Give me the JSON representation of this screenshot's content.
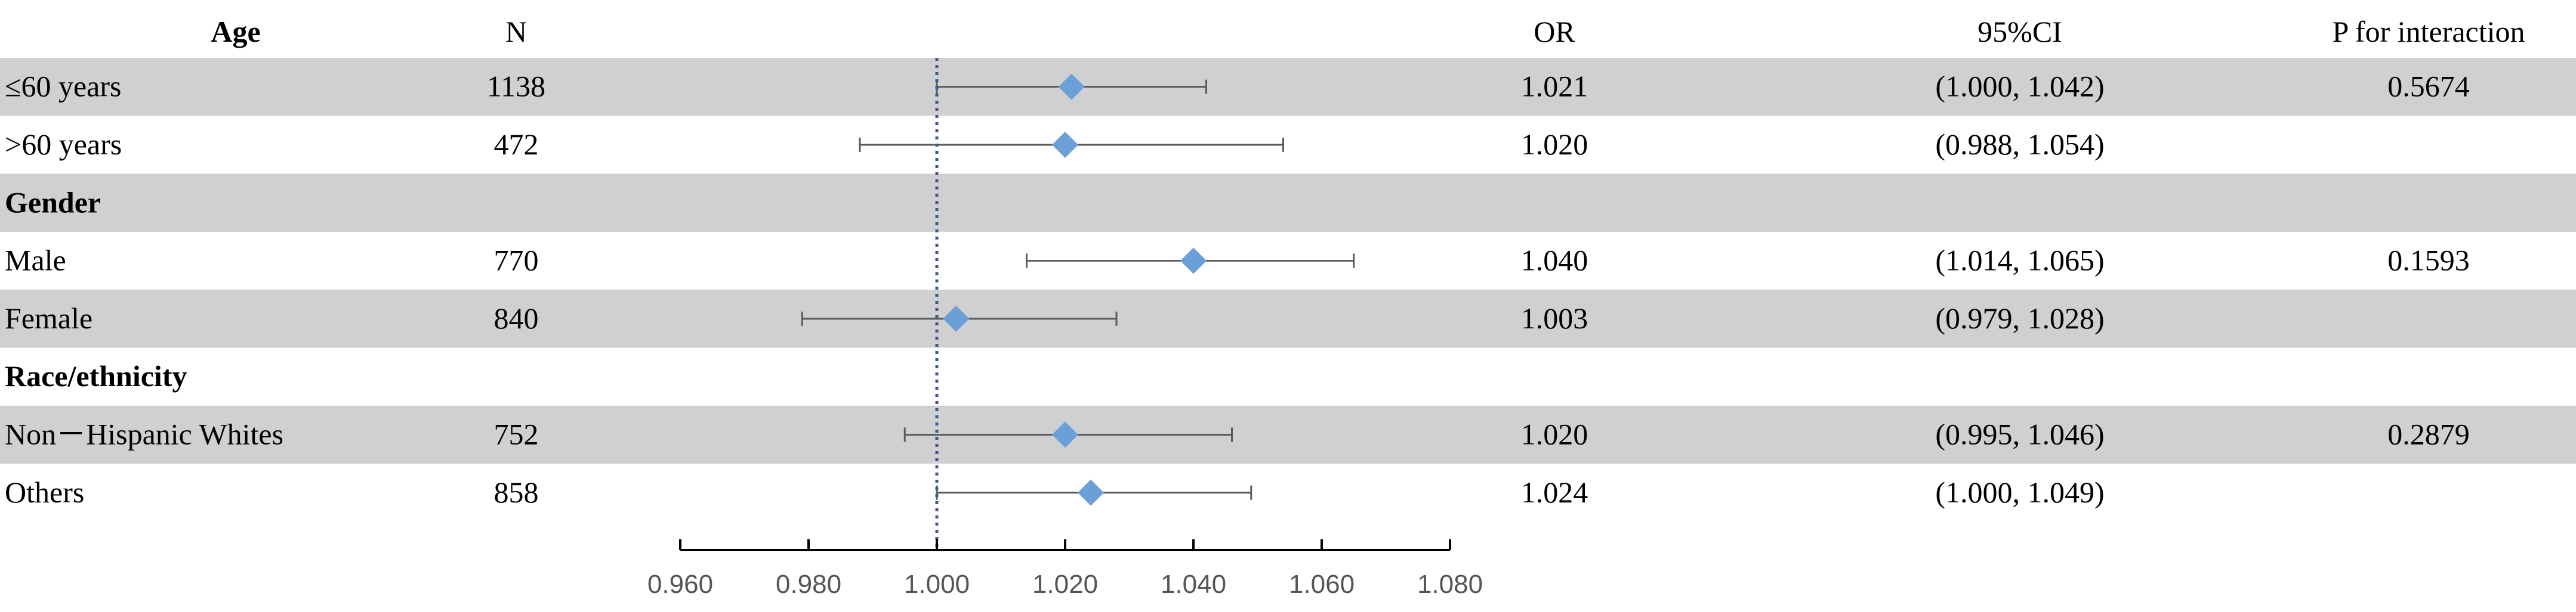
{
  "header": {
    "group": "Age",
    "n": "N",
    "or": "OR",
    "ci": "95%CI",
    "p": "P for interaction"
  },
  "colors": {
    "band": "#d0d0d0",
    "marker": "#6a9fd8",
    "ci_line": "#5a5a5a",
    "ref_line": "#3d5a80",
    "axis": "#000000"
  },
  "chart_data": {
    "type": "scatter",
    "subtype": "forest-plot",
    "xlim": [
      0.96,
      1.08
    ],
    "reference_value": 1.0,
    "x_ticks": [
      "0.960",
      "0.980",
      "1.000",
      "1.020",
      "1.040",
      "1.060",
      "1.080"
    ],
    "rows": [
      {
        "label": "≤60 years",
        "n": "1138",
        "or": 1.021,
        "lo": 1.0,
        "hi": 1.042,
        "or_text": "1.021",
        "ci_text": "(1.000, 1.042)",
        "p_text": "0.5674",
        "band": true
      },
      {
        "label": ">60 years",
        "n": "472",
        "or": 1.02,
        "lo": 0.988,
        "hi": 1.054,
        "or_text": "1.020",
        "ci_text": "(0.988, 1.054)",
        "p_text": "",
        "band": false
      },
      {
        "label": "Gender",
        "heading": true,
        "band": true
      },
      {
        "label": "Male",
        "n": "770",
        "or": 1.04,
        "lo": 1.014,
        "hi": 1.065,
        "or_text": "1.040",
        "ci_text": "(1.014, 1.065)",
        "p_text": "0.1593",
        "band": false
      },
      {
        "label": "Female",
        "n": "840",
        "or": 1.003,
        "lo": 0.979,
        "hi": 1.028,
        "or_text": "1.003",
        "ci_text": "(0.979, 1.028)",
        "p_text": "",
        "band": true
      },
      {
        "label": "Race/ethnicity",
        "heading": true,
        "band": false
      },
      {
        "label": "Non－Hispanic Whites",
        "n": "752",
        "or": 1.02,
        "lo": 0.995,
        "hi": 1.046,
        "or_text": "1.020",
        "ci_text": "(0.995, 1.046)",
        "p_text": "0.2879",
        "band": true
      },
      {
        "label": "Others",
        "n": "858",
        "or": 1.024,
        "lo": 1.0,
        "hi": 1.049,
        "or_text": "1.024",
        "ci_text": "(1.000, 1.049)",
        "p_text": "",
        "band": false
      }
    ]
  }
}
